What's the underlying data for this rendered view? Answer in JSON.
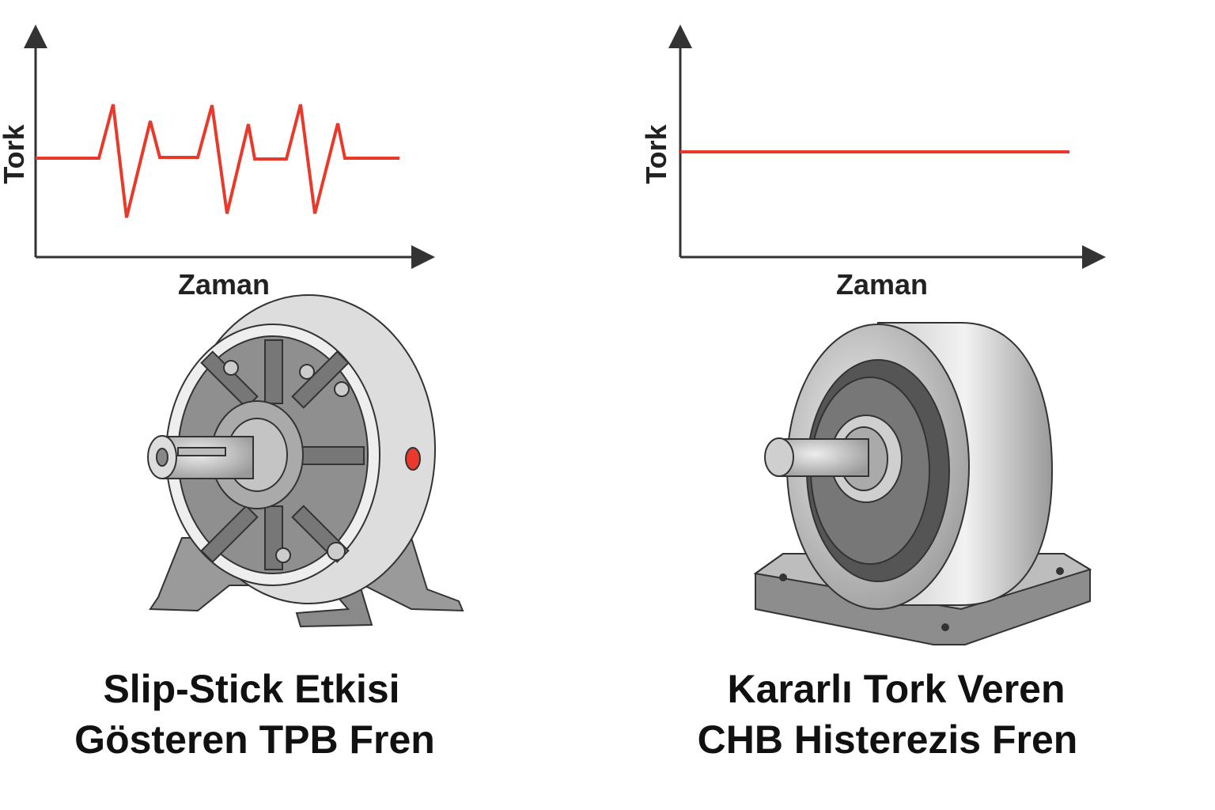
{
  "panels": [
    {
      "y_label": "Tork",
      "x_label": "Zaman",
      "caption": [
        "Slip-Stick Etkisi",
        "Gösteren TPB Fren"
      ]
    },
    {
      "y_label": "Tork",
      "x_label": "Zaman",
      "caption": [
        "Kararlı Tork Veren",
        "CHB Histerezis Fren"
      ]
    }
  ]
}
